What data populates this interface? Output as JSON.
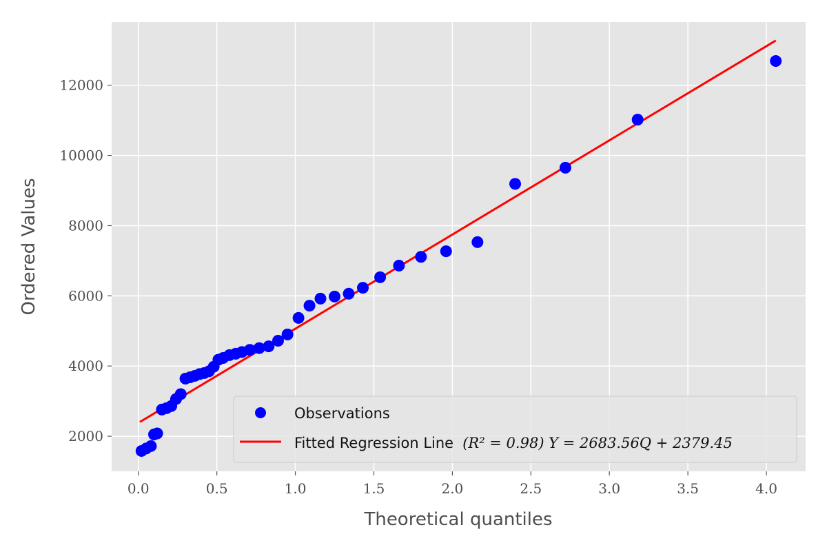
{
  "chart_data": {
    "type": "scatter",
    "title": "",
    "xlabel": "Theoretical quantiles",
    "ylabel": "Ordered Values",
    "xlim": [
      -0.17,
      4.25
    ],
    "ylim": [
      1000,
      13800
    ],
    "x_ticks": [
      0.0,
      0.5,
      1.0,
      1.5,
      2.0,
      2.5,
      3.0,
      3.5,
      4.0
    ],
    "x_tick_labels": [
      "0.0",
      "0.5",
      "1.0",
      "1.5",
      "2.0",
      "2.5",
      "3.0",
      "3.5",
      "4.0"
    ],
    "y_ticks": [
      2000,
      4000,
      6000,
      8000,
      10000,
      12000
    ],
    "y_tick_labels": [
      "2000",
      "4000",
      "6000",
      "8000",
      "10000",
      "12000"
    ],
    "grid": true,
    "legend_position": "lower-right",
    "series": [
      {
        "name": "Observations",
        "kind": "scatter",
        "color": "#0000ff",
        "x": [
          0.02,
          0.05,
          0.08,
          0.1,
          0.12,
          0.15,
          0.18,
          0.21,
          0.24,
          0.27,
          0.3,
          0.33,
          0.36,
          0.39,
          0.42,
          0.45,
          0.48,
          0.51,
          0.54,
          0.58,
          0.62,
          0.66,
          0.71,
          0.77,
          0.83,
          0.89,
          0.95,
          1.02,
          1.09,
          1.16,
          1.25,
          1.34,
          1.43,
          1.54,
          1.66,
          1.8,
          1.96,
          2.16,
          2.4,
          2.72,
          3.18,
          4.06
        ],
        "y": [
          1580,
          1650,
          1720,
          2050,
          2080,
          2760,
          2800,
          2860,
          3060,
          3200,
          3640,
          3680,
          3720,
          3770,
          3800,
          3850,
          3980,
          4180,
          4230,
          4310,
          4350,
          4400,
          4460,
          4510,
          4560,
          4720,
          4900,
          5370,
          5720,
          5920,
          5980,
          6060,
          6230,
          6530,
          6860,
          7110,
          7270,
          7530,
          9190,
          9650,
          11020,
          12690
        ]
      },
      {
        "name": "Fitted Regression Line",
        "kind": "line",
        "color": "#ff0000",
        "x": [
          0.01,
          4.06
        ],
        "y": [
          2406,
          13274
        ]
      }
    ],
    "legend_entries": [
      {
        "label": "Observations",
        "math": ""
      },
      {
        "label": "Fitted Regression Line",
        "math": "(R² = 0.98) Y = 2683.56Q + 2379.45"
      }
    ]
  }
}
